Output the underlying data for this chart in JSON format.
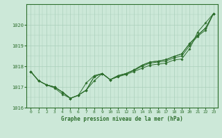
{
  "title": "Graphe pression niveau de la mer (hPa)",
  "background_color": "#cce8d8",
  "plot_bg_color": "#cce8d8",
  "grid_color": "#aacfba",
  "line_color": "#2d6e2d",
  "marker_color": "#2d6e2d",
  "xlim": [
    -0.5,
    23.5
  ],
  "ylim": [
    1016.0,
    1021.0
  ],
  "yticks": [
    1016,
    1017,
    1018,
    1019,
    1020
  ],
  "xticks": [
    0,
    1,
    2,
    3,
    4,
    5,
    6,
    7,
    8,
    9,
    10,
    11,
    12,
    13,
    14,
    15,
    16,
    17,
    18,
    19,
    20,
    21,
    22,
    23
  ],
  "series": [
    [
      1017.75,
      1017.3,
      1017.1,
      1016.95,
      1016.65,
      1016.45,
      1016.6,
      1017.2,
      1017.55,
      1017.65,
      1017.35,
      1017.5,
      1017.6,
      1017.75,
      1017.9,
      1018.05,
      1018.1,
      1018.15,
      1018.3,
      1018.35,
      1018.85,
      1019.65,
      1020.1,
      1020.55
    ],
    [
      1017.75,
      1017.3,
      1017.1,
      1017.0,
      1016.75,
      1016.45,
      1016.6,
      1016.85,
      1017.3,
      1017.65,
      1017.35,
      1017.5,
      1017.65,
      1017.8,
      1018.0,
      1018.15,
      1018.2,
      1018.25,
      1018.4,
      1018.5,
      1019.0,
      1019.45,
      1019.75,
      1020.55
    ],
    [
      1017.75,
      1017.3,
      1017.1,
      1017.0,
      1016.75,
      1016.45,
      1016.6,
      1016.85,
      1017.5,
      1017.65,
      1017.35,
      1017.55,
      1017.65,
      1017.82,
      1018.05,
      1018.2,
      1018.25,
      1018.32,
      1018.47,
      1018.6,
      1019.1,
      1019.5,
      1019.85,
      1020.55
    ],
    [
      1017.75,
      1017.3,
      1017.1,
      1017.0,
      1016.75,
      1016.45,
      1016.6,
      1016.85,
      1017.5,
      1017.65,
      1017.35,
      1017.55,
      1017.65,
      1017.82,
      1018.05,
      1018.2,
      1018.25,
      1018.32,
      1018.47,
      1018.6,
      1019.1,
      1019.5,
      1019.85,
      1020.55
    ]
  ],
  "figsize": [
    3.2,
    2.0
  ],
  "dpi": 100
}
